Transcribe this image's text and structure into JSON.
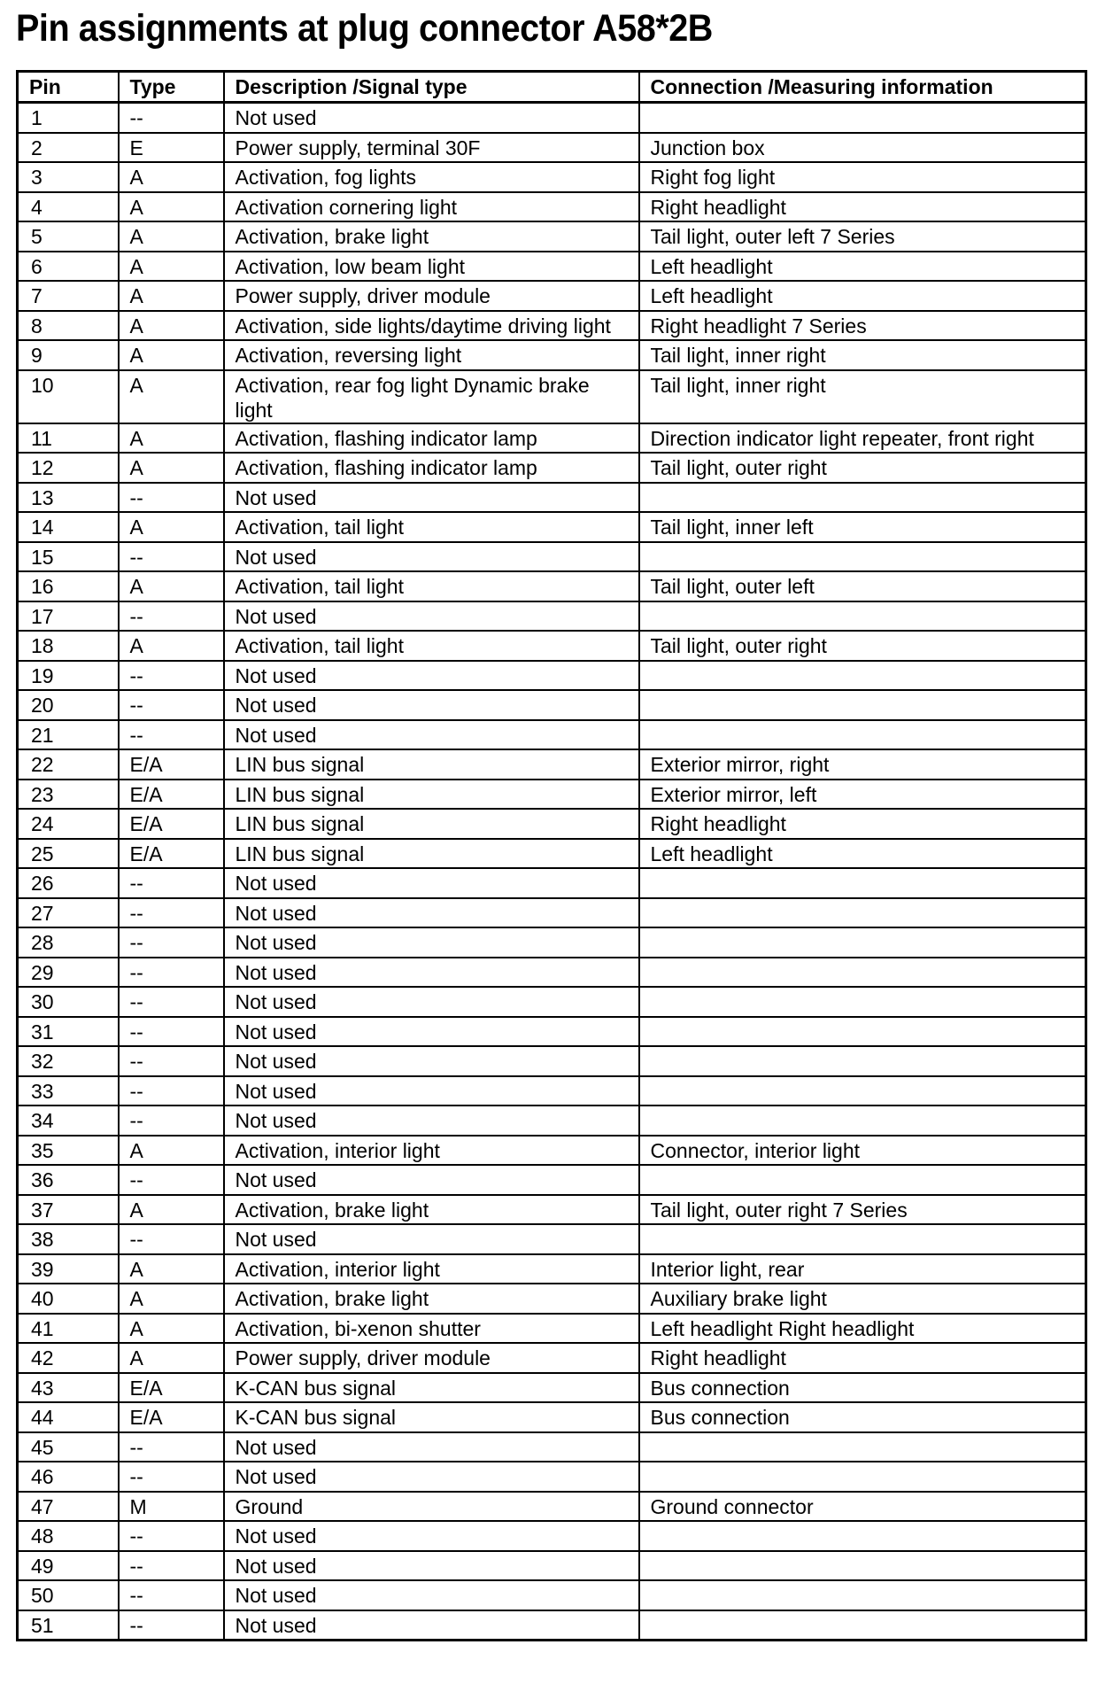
{
  "title": "Pin assignments at plug connector A58*2B",
  "headers": [
    "Pin",
    "Type",
    "Description /Signal type",
    "Connection /Measuring information"
  ],
  "rows": [
    [
      "1",
      "--",
      "Not used",
      ""
    ],
    [
      "2",
      "E",
      "Power supply, terminal 30F",
      "Junction box"
    ],
    [
      "3",
      "A",
      "Activation, fog lights",
      "Right fog light"
    ],
    [
      "4",
      "A",
      "Activation cornering light",
      "Right headlight"
    ],
    [
      "5",
      "A",
      "Activation, brake light",
      "Tail light, outer left 7 Series"
    ],
    [
      "6",
      "A",
      "Activation, low beam light",
      "Left headlight"
    ],
    [
      "7",
      "A",
      "Power supply, driver module",
      "Left headlight"
    ],
    [
      "8",
      "A",
      "Activation, side lights/daytime driving light",
      "Right headlight 7 Series"
    ],
    [
      "9",
      "A",
      "Activation, reversing light",
      "Tail light, inner right"
    ],
    [
      "10",
      "A",
      "Activation, rear fog light Dynamic brake light",
      "Tail light, inner right"
    ],
    [
      "11",
      "A",
      "Activation, flashing indicator lamp",
      "Direction indicator light repeater, front right"
    ],
    [
      "12",
      "A",
      "Activation, flashing indicator lamp",
      "Tail light, outer right"
    ],
    [
      "13",
      "--",
      "Not used",
      ""
    ],
    [
      "14",
      "A",
      "Activation, tail light",
      "Tail light, inner left"
    ],
    [
      "15",
      "--",
      "Not used",
      ""
    ],
    [
      "16",
      "A",
      "Activation, tail light",
      "Tail light, outer left"
    ],
    [
      "17",
      "--",
      "Not used",
      ""
    ],
    [
      "18",
      "A",
      "Activation, tail light",
      "Tail light, outer right"
    ],
    [
      "19",
      "--",
      "Not used",
      ""
    ],
    [
      "20",
      "--",
      "Not used",
      ""
    ],
    [
      "21",
      "--",
      "Not used",
      ""
    ],
    [
      "22",
      "E/A",
      "LIN bus signal",
      "Exterior mirror, right"
    ],
    [
      "23",
      "E/A",
      "LIN bus signal",
      "Exterior mirror, left"
    ],
    [
      "24",
      "E/A",
      "LIN bus signal",
      "Right headlight"
    ],
    [
      "25",
      "E/A",
      "LIN bus signal",
      "Left headlight"
    ],
    [
      "26",
      "--",
      "Not used",
      ""
    ],
    [
      "27",
      "--",
      "Not used",
      ""
    ],
    [
      "28",
      "--",
      "Not used",
      ""
    ],
    [
      "29",
      "--",
      "Not used",
      ""
    ],
    [
      "30",
      "--",
      "Not used",
      ""
    ],
    [
      "31",
      "--",
      "Not used",
      ""
    ],
    [
      "32",
      "--",
      "Not used",
      ""
    ],
    [
      "33",
      "--",
      "Not used",
      ""
    ],
    [
      "34",
      "--",
      "Not used",
      ""
    ],
    [
      "35",
      "A",
      "Activation, interior light",
      "Connector, interior light"
    ],
    [
      "36",
      "--",
      "Not used",
      ""
    ],
    [
      "37",
      "A",
      "Activation, brake light",
      "Tail light, outer right 7 Series"
    ],
    [
      "38",
      "--",
      "Not used",
      ""
    ],
    [
      "39",
      "A",
      "Activation, interior light",
      "Interior light, rear"
    ],
    [
      "40",
      "A",
      "Activation, brake light",
      "Auxiliary brake light"
    ],
    [
      "41",
      "A",
      "Activation, bi-xenon shutter",
      "Left headlight Right headlight"
    ],
    [
      "42",
      "A",
      "Power supply, driver module",
      "Right headlight"
    ],
    [
      "43",
      "E/A",
      "K-CAN bus signal",
      "Bus connection"
    ],
    [
      "44",
      "E/A",
      "K-CAN bus signal",
      "Bus connection"
    ],
    [
      "45",
      "--",
      "Not used",
      ""
    ],
    [
      "46",
      "--",
      "Not used",
      ""
    ],
    [
      "47",
      "M",
      "Ground",
      "Ground connector"
    ],
    [
      "48",
      "--",
      "Not used",
      ""
    ],
    [
      "49",
      "--",
      "Not used",
      ""
    ],
    [
      "50",
      "--",
      "Not used",
      ""
    ],
    [
      "51",
      "--",
      "Not used",
      ""
    ]
  ]
}
